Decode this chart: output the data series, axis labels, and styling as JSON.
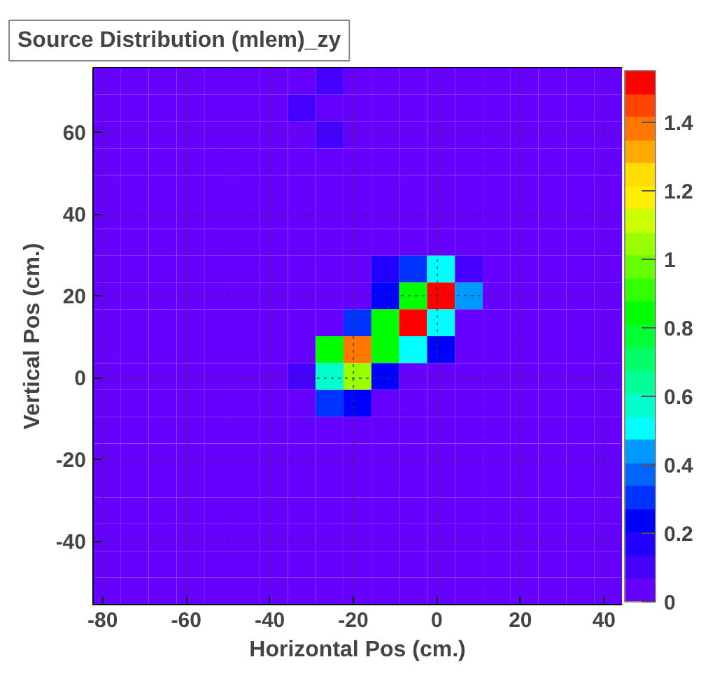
{
  "chart_data": {
    "type": "heatmap",
    "title": "Source Distribution (mlem)_zy",
    "xlabel": "Horizontal Pos (cm.)",
    "ylabel": "Vertical Pos (cm.)",
    "xlim": [
      -82.3,
      44.3
    ],
    "ylim": [
      -55.5,
      75.8
    ],
    "xticks": [
      -80,
      -60,
      -40,
      -20,
      0,
      20,
      40
    ],
    "yticks": [
      -40,
      -20,
      0,
      20,
      40,
      60
    ],
    "clim": [
      0,
      1.55
    ],
    "cticks": [
      0,
      0.2,
      0.4,
      0.6,
      0.8,
      1,
      1.2,
      1.4
    ],
    "colors": [
      "#6600ff",
      "#4400ff",
      "#2200ff",
      "#0000ff",
      "#0033ff",
      "#0066ff",
      "#0099ff",
      "#00ffff",
      "#00ffcc",
      "#00ff99",
      "#00ff66",
      "#00ff33",
      "#00ff00",
      "#33ff00",
      "#66ff00",
      "#99ff00",
      "#ccff00",
      "#ffee00",
      "#ffdd00",
      "#ffaa00",
      "#ff7700",
      "#ff4400",
      "#ff0000"
    ],
    "grid": true,
    "cells": [
      [
        0,
        0,
        0,
        0,
        0,
        0,
        0,
        0,
        0.12,
        0,
        0,
        0,
        0,
        0,
        0,
        0,
        0,
        0,
        0
      ],
      [
        0,
        0,
        0,
        0,
        0,
        0,
        0,
        0.12,
        0,
        0,
        0,
        0,
        0,
        0,
        0,
        0,
        0,
        0,
        0
      ],
      [
        0,
        0,
        0,
        0,
        0,
        0,
        0,
        0,
        0.12,
        0,
        0,
        0,
        0,
        0,
        0,
        0,
        0,
        0,
        0
      ],
      [
        0,
        0,
        0,
        0,
        0,
        0,
        0,
        0,
        0,
        0,
        0,
        0,
        0,
        0,
        0,
        0,
        0,
        0,
        0
      ],
      [
        0,
        0,
        0,
        0,
        0,
        0,
        0,
        0,
        0,
        0,
        0,
        0,
        0,
        0,
        0,
        0,
        0,
        0,
        0
      ],
      [
        0,
        0,
        0,
        0,
        0,
        0,
        0,
        0,
        0,
        0,
        0,
        0,
        0,
        0,
        0,
        0,
        0,
        0,
        0
      ],
      [
        0,
        0,
        0,
        0,
        0,
        0,
        0,
        0,
        0,
        0,
        0,
        0,
        0,
        0,
        0,
        0,
        0,
        0,
        0
      ],
      [
        0,
        0,
        0,
        0,
        0,
        0,
        0,
        0,
        0,
        0,
        0.17,
        0.28,
        0.5,
        0.12,
        0,
        0,
        0,
        0,
        0
      ],
      [
        0,
        0,
        0,
        0,
        0,
        0,
        0,
        0,
        0,
        0,
        0.24,
        0.85,
        1.52,
        0.43,
        0,
        0,
        0,
        0,
        0
      ],
      [
        0,
        0,
        0,
        0,
        0,
        0,
        0,
        0,
        0,
        0.32,
        0.85,
        1.52,
        0.5,
        0,
        0,
        0,
        0,
        0,
        0
      ],
      [
        0,
        0,
        0,
        0,
        0,
        0,
        0,
        0,
        0.85,
        1.38,
        0.85,
        0.5,
        0.24,
        0,
        0,
        0,
        0,
        0,
        0
      ],
      [
        0,
        0,
        0,
        0,
        0,
        0,
        0,
        0.12,
        0.57,
        1.05,
        0.24,
        0,
        0,
        0,
        0,
        0,
        0,
        0,
        0
      ],
      [
        0,
        0,
        0,
        0,
        0,
        0,
        0,
        0,
        0.32,
        0.22,
        0,
        0,
        0,
        0,
        0,
        0,
        0,
        0,
        0
      ],
      [
        0,
        0,
        0,
        0,
        0,
        0,
        0,
        0,
        0,
        0,
        0,
        0,
        0,
        0,
        0,
        0,
        0,
        0,
        0
      ],
      [
        0,
        0,
        0,
        0,
        0,
        0,
        0,
        0,
        0,
        0,
        0,
        0,
        0,
        0,
        0,
        0,
        0,
        0,
        0
      ],
      [
        0,
        0,
        0,
        0,
        0,
        0,
        0,
        0,
        0,
        0,
        0,
        0,
        0,
        0,
        0,
        0,
        0,
        0,
        0
      ],
      [
        0,
        0,
        0,
        0,
        0,
        0,
        0,
        0,
        0,
        0,
        0,
        0,
        0,
        0,
        0,
        0,
        0,
        0,
        0
      ],
      [
        0,
        0,
        0,
        0,
        0,
        0,
        0,
        0,
        0,
        0,
        0,
        0,
        0,
        0,
        0,
        0,
        0,
        0,
        0
      ],
      [
        0,
        0,
        0,
        0,
        0,
        0,
        0,
        0,
        0,
        0,
        0,
        0,
        0,
        0,
        0,
        0,
        0,
        0,
        0
      ],
      [
        0,
        0,
        0,
        0,
        0,
        0,
        0,
        0,
        0,
        0,
        0,
        0,
        0,
        0,
        0,
        0,
        0,
        0,
        0
      ]
    ]
  }
}
